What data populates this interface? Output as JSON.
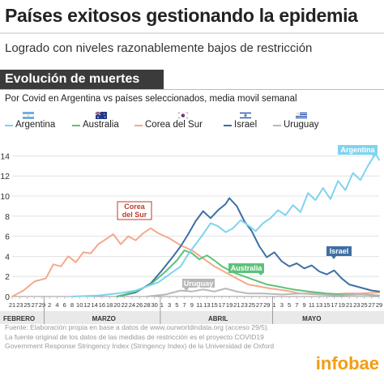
{
  "header": {
    "title": "Países exitosos gestionando la epidemia",
    "subtitle": "Logrado con niveles razonablemente bajos de restricción"
  },
  "section": {
    "label": "Evolución de muertes",
    "description": "Por Covid en Argentina vs países seleccionados, media movil semanal"
  },
  "legend": [
    {
      "label": "Argentina",
      "color": "#7fd3ef",
      "flag": "argentina-flag-icon"
    },
    {
      "label": "Australia",
      "color": "#5cc27a",
      "flag": "australia-flag-icon"
    },
    {
      "label": "Corea del Sur",
      "color": "#f4a98a",
      "flag": "korea-flag-icon"
    },
    {
      "label": "Israel",
      "color": "#3e6fa3",
      "flag": "israel-flag-icon"
    },
    {
      "label": "Uruguay",
      "color": "#b8b8b8",
      "flag": "uruguay-flag-icon"
    }
  ],
  "chart_data": {
    "type": "line",
    "ylim": [
      0,
      15
    ],
    "yticks": [
      0,
      2,
      4,
      6,
      8,
      10,
      12,
      14
    ],
    "grid": true,
    "x_tick_labels": [
      "21",
      "23",
      "25",
      "27",
      "29",
      "2",
      "4",
      "6",
      "8",
      "10",
      "12",
      "14",
      "16",
      "18",
      "20",
      "22",
      "24",
      "26",
      "28",
      "30",
      "1",
      "3",
      "5",
      "7",
      "9",
      "11",
      "13",
      "15",
      "17",
      "19",
      "21",
      "23",
      "25",
      "27",
      "29",
      "1",
      "3",
      "5",
      "7",
      "9",
      "11",
      "13",
      "15",
      "17",
      "19",
      "21",
      "23",
      "25",
      "27",
      "29"
    ],
    "month_labels": [
      "FEBRERO",
      "MARZO",
      "ABRIL",
      "MAYO"
    ],
    "annotations": {
      "argentina": "Argentina",
      "corea": "Corea\ndel Sur",
      "australia": "Australia",
      "uruguay": "Uruguay",
      "israel": "Israel"
    },
    "series": [
      {
        "name": "Corea del Sur",
        "color": "#f4a98a",
        "values": [
          {
            "x": "2020-02-21",
            "y": 0
          },
          {
            "x": "2020-02-24",
            "y": 0.6
          },
          {
            "x": "2020-02-27",
            "y": 1.5
          },
          {
            "x": "2020-03-01",
            "y": 1.8
          },
          {
            "x": "2020-03-03",
            "y": 3.2
          },
          {
            "x": "2020-03-05",
            "y": 3.0
          },
          {
            "x": "2020-03-07",
            "y": 4.0
          },
          {
            "x": "2020-03-09",
            "y": 3.4
          },
          {
            "x": "2020-03-11",
            "y": 4.4
          },
          {
            "x": "2020-03-13",
            "y": 4.3
          },
          {
            "x": "2020-03-15",
            "y": 5.2
          },
          {
            "x": "2020-03-17",
            "y": 5.7
          },
          {
            "x": "2020-03-19",
            "y": 6.2
          },
          {
            "x": "2020-03-21",
            "y": 5.2
          },
          {
            "x": "2020-03-23",
            "y": 6.0
          },
          {
            "x": "2020-03-25",
            "y": 5.6
          },
          {
            "x": "2020-03-27",
            "y": 6.3
          },
          {
            "x": "2020-03-29",
            "y": 6.8
          },
          {
            "x": "2020-03-31",
            "y": 6.3
          },
          {
            "x": "2020-04-03",
            "y": 5.8
          },
          {
            "x": "2020-04-06",
            "y": 5.1
          },
          {
            "x": "2020-04-09",
            "y": 4.6
          },
          {
            "x": "2020-04-12",
            "y": 3.8
          },
          {
            "x": "2020-04-15",
            "y": 3.0
          },
          {
            "x": "2020-04-18",
            "y": 2.4
          },
          {
            "x": "2020-04-21",
            "y": 1.8
          },
          {
            "x": "2020-04-24",
            "y": 1.2
          },
          {
            "x": "2020-04-27",
            "y": 1.0
          },
          {
            "x": "2020-04-30",
            "y": 0.8
          },
          {
            "x": "2020-05-04",
            "y": 0.6
          },
          {
            "x": "2020-05-08",
            "y": 0.3
          },
          {
            "x": "2020-05-12",
            "y": 0.3
          },
          {
            "x": "2020-05-16",
            "y": 0.2
          },
          {
            "x": "2020-05-20",
            "y": 0.3
          },
          {
            "x": "2020-05-24",
            "y": 0.3
          },
          {
            "x": "2020-05-29",
            "y": 0.4
          }
        ]
      },
      {
        "name": "Israel",
        "color": "#3e6fa3",
        "values": [
          {
            "x": "2020-03-20",
            "y": 0
          },
          {
            "x": "2020-03-25",
            "y": 0.4
          },
          {
            "x": "2020-03-29",
            "y": 1.3
          },
          {
            "x": "2020-04-01",
            "y": 2.6
          },
          {
            "x": "2020-04-04",
            "y": 4.0
          },
          {
            "x": "2020-04-06",
            "y": 5.0
          },
          {
            "x": "2020-04-08",
            "y": 6.2
          },
          {
            "x": "2020-04-10",
            "y": 7.5
          },
          {
            "x": "2020-04-12",
            "y": 8.5
          },
          {
            "x": "2020-04-14",
            "y": 7.8
          },
          {
            "x": "2020-04-16",
            "y": 8.6
          },
          {
            "x": "2020-04-18",
            "y": 9.2
          },
          {
            "x": "2020-04-19",
            "y": 9.8
          },
          {
            "x": "2020-04-21",
            "y": 9.0
          },
          {
            "x": "2020-04-23",
            "y": 7.5
          },
          {
            "x": "2020-04-25",
            "y": 6.5
          },
          {
            "x": "2020-04-27",
            "y": 5.0
          },
          {
            "x": "2020-04-29",
            "y": 3.9
          },
          {
            "x": "2020-05-01",
            "y": 4.4
          },
          {
            "x": "2020-05-03",
            "y": 3.5
          },
          {
            "x": "2020-05-05",
            "y": 3.0
          },
          {
            "x": "2020-05-07",
            "y": 3.3
          },
          {
            "x": "2020-05-09",
            "y": 2.8
          },
          {
            "x": "2020-05-11",
            "y": 3.1
          },
          {
            "x": "2020-05-13",
            "y": 2.5
          },
          {
            "x": "2020-05-15",
            "y": 2.2
          },
          {
            "x": "2020-05-17",
            "y": 2.6
          },
          {
            "x": "2020-05-19",
            "y": 1.8
          },
          {
            "x": "2020-05-21",
            "y": 1.2
          },
          {
            "x": "2020-05-23",
            "y": 1.0
          },
          {
            "x": "2020-05-25",
            "y": 0.8
          },
          {
            "x": "2020-05-27",
            "y": 0.6
          },
          {
            "x": "2020-05-29",
            "y": 0.5
          }
        ]
      },
      {
        "name": "Australia",
        "color": "#5cc27a",
        "values": [
          {
            "x": "2020-03-20",
            "y": 0
          },
          {
            "x": "2020-03-25",
            "y": 0.5
          },
          {
            "x": "2020-03-29",
            "y": 1.2
          },
          {
            "x": "2020-04-02",
            "y": 2.5
          },
          {
            "x": "2020-04-05",
            "y": 3.6
          },
          {
            "x": "2020-04-07",
            "y": 4.6
          },
          {
            "x": "2020-04-09",
            "y": 4.3
          },
          {
            "x": "2020-04-11",
            "y": 3.7
          },
          {
            "x": "2020-04-13",
            "y": 4.1
          },
          {
            "x": "2020-04-15",
            "y": 3.6
          },
          {
            "x": "2020-04-17",
            "y": 3.0
          },
          {
            "x": "2020-04-20",
            "y": 2.4
          },
          {
            "x": "2020-04-23",
            "y": 2.0
          },
          {
            "x": "2020-04-26",
            "y": 1.6
          },
          {
            "x": "2020-04-29",
            "y": 1.2
          },
          {
            "x": "2020-05-02",
            "y": 1.0
          },
          {
            "x": "2020-05-06",
            "y": 0.7
          },
          {
            "x": "2020-05-10",
            "y": 0.5
          },
          {
            "x": "2020-05-15",
            "y": 0.3
          },
          {
            "x": "2020-05-20",
            "y": 0.2
          },
          {
            "x": "2020-05-25",
            "y": 0.2
          },
          {
            "x": "2020-05-29",
            "y": 0.1
          }
        ]
      },
      {
        "name": "Uruguay",
        "color": "#b8b8b8",
        "values": [
          {
            "x": "2020-03-28",
            "y": 0
          },
          {
            "x": "2020-04-02",
            "y": 0.2
          },
          {
            "x": "2020-04-06",
            "y": 0.6
          },
          {
            "x": "2020-04-09",
            "y": 0.5
          },
          {
            "x": "2020-04-12",
            "y": 0.7
          },
          {
            "x": "2020-04-15",
            "y": 0.5
          },
          {
            "x": "2020-04-18",
            "y": 0.8
          },
          {
            "x": "2020-04-21",
            "y": 0.5
          },
          {
            "x": "2020-04-24",
            "y": 0.3
          },
          {
            "x": "2020-04-28",
            "y": 0.3
          },
          {
            "x": "2020-05-03",
            "y": 0.2
          },
          {
            "x": "2020-05-08",
            "y": 0.3
          },
          {
            "x": "2020-05-13",
            "y": 0.2
          },
          {
            "x": "2020-05-18",
            "y": 0.1
          },
          {
            "x": "2020-05-24",
            "y": 0.2
          },
          {
            "x": "2020-05-29",
            "y": 0.1
          }
        ]
      },
      {
        "name": "Argentina",
        "color": "#7fd3ef",
        "values": [
          {
            "x": "2020-03-08",
            "y": 0
          },
          {
            "x": "2020-03-15",
            "y": 0.1
          },
          {
            "x": "2020-03-20",
            "y": 0.3
          },
          {
            "x": "2020-03-25",
            "y": 0.6
          },
          {
            "x": "2020-03-28",
            "y": 1.0
          },
          {
            "x": "2020-03-31",
            "y": 1.4
          },
          {
            "x": "2020-04-03",
            "y": 2.2
          },
          {
            "x": "2020-04-06",
            "y": 3.0
          },
          {
            "x": "2020-04-08",
            "y": 4.2
          },
          {
            "x": "2020-04-10",
            "y": 5.2
          },
          {
            "x": "2020-04-12",
            "y": 6.2
          },
          {
            "x": "2020-04-14",
            "y": 7.3
          },
          {
            "x": "2020-04-16",
            "y": 7.0
          },
          {
            "x": "2020-04-18",
            "y": 6.4
          },
          {
            "x": "2020-04-20",
            "y": 6.8
          },
          {
            "x": "2020-04-22",
            "y": 7.6
          },
          {
            "x": "2020-04-24",
            "y": 7.1
          },
          {
            "x": "2020-04-26",
            "y": 6.5
          },
          {
            "x": "2020-04-28",
            "y": 7.3
          },
          {
            "x": "2020-04-30",
            "y": 7.8
          },
          {
            "x": "2020-05-02",
            "y": 8.6
          },
          {
            "x": "2020-05-04",
            "y": 8.1
          },
          {
            "x": "2020-05-06",
            "y": 9.1
          },
          {
            "x": "2020-05-08",
            "y": 8.4
          },
          {
            "x": "2020-05-10",
            "y": 10.3
          },
          {
            "x": "2020-05-12",
            "y": 9.6
          },
          {
            "x": "2020-05-14",
            "y": 10.8
          },
          {
            "x": "2020-05-16",
            "y": 9.7
          },
          {
            "x": "2020-05-18",
            "y": 11.5
          },
          {
            "x": "2020-05-20",
            "y": 10.6
          },
          {
            "x": "2020-05-22",
            "y": 12.3
          },
          {
            "x": "2020-05-24",
            "y": 11.6
          },
          {
            "x": "2020-05-26",
            "y": 13.0
          },
          {
            "x": "2020-05-28",
            "y": 14.2
          },
          {
            "x": "2020-05-29",
            "y": 13.6
          }
        ]
      }
    ]
  },
  "footer": {
    "line1": "Fuente: Elaboración propia en base a datos de www.ourworldindata.org (acceso 29/5).",
    "line2": "La fuente original de los datos de las medidas de restricción es el proyecto  COVID19",
    "line3": "Government Response Stringency Index  (Stringency Index) de la Universidad de Oxford",
    "brand": "infobae"
  }
}
